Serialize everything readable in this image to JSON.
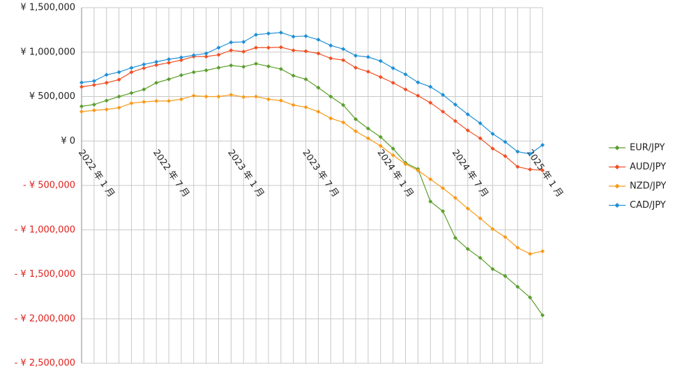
{
  "chart_data": {
    "type": "line",
    "categories": [
      "2022 年 1 月",
      null,
      null,
      null,
      null,
      null,
      "2022 年 7 月",
      null,
      null,
      null,
      null,
      null,
      "2023 年 1 月",
      null,
      null,
      null,
      null,
      null,
      "2023 年 7 月",
      null,
      null,
      null,
      null,
      null,
      "2024 年 1 月",
      null,
      null,
      null,
      null,
      null,
      "2024 年 7 月",
      null,
      null,
      null,
      null,
      null,
      "2025 年 1 月",
      null
    ],
    "series": [
      {
        "name": "EUR/JPY",
        "color": "#5b9e2d",
        "values": [
          390000,
          410000,
          455000,
          500000,
          540000,
          580000,
          655000,
          695000,
          740000,
          775000,
          795000,
          825000,
          850000,
          835000,
          870000,
          840000,
          810000,
          735000,
          695000,
          600000,
          500000,
          405000,
          245000,
          140000,
          45000,
          -85000,
          -245000,
          -315000,
          -680000,
          -790000,
          -1090000,
          -1215000,
          -1315000,
          -1440000,
          -1520000,
          -1640000,
          -1760000,
          -1960000
        ]
      },
      {
        "name": "AUD/JPY",
        "color": "#f05023",
        "values": [
          610000,
          630000,
          655000,
          690000,
          775000,
          820000,
          855000,
          880000,
          910000,
          950000,
          950000,
          970000,
          1020000,
          1005000,
          1050000,
          1050000,
          1055000,
          1020000,
          1010000,
          985000,
          930000,
          910000,
          825000,
          780000,
          720000,
          655000,
          580000,
          510000,
          430000,
          330000,
          225000,
          120000,
          30000,
          -85000,
          -170000,
          -290000,
          -320000,
          -330000
        ]
      },
      {
        "name": "NZD/JPY",
        "color": "#f79a1a",
        "values": [
          330000,
          345000,
          355000,
          375000,
          425000,
          440000,
          450000,
          450000,
          470000,
          510000,
          500000,
          500000,
          520000,
          495000,
          500000,
          470000,
          455000,
          405000,
          380000,
          330000,
          255000,
          210000,
          110000,
          30000,
          -55000,
          -160000,
          -260000,
          -330000,
          -430000,
          -530000,
          -640000,
          -760000,
          -870000,
          -990000,
          -1080000,
          -1200000,
          -1270000,
          -1240000
        ]
      },
      {
        "name": "CAD/JPY",
        "color": "#1f8fd6",
        "values": [
          658000,
          675000,
          745000,
          775000,
          823000,
          862000,
          890000,
          920000,
          940000,
          965000,
          985000,
          1050000,
          1110000,
          1115000,
          1195000,
          1210000,
          1220000,
          1175000,
          1180000,
          1140000,
          1075000,
          1035000,
          960000,
          945000,
          900000,
          820000,
          750000,
          660000,
          610000,
          520000,
          410000,
          300000,
          200000,
          80000,
          -10000,
          -120000,
          -145000,
          -45000
        ]
      }
    ],
    "ylim": [
      -2500000,
      1500000
    ],
    "yticks": [
      {
        "value": 1500000,
        "label": "¥ 1,500,000"
      },
      {
        "value": 1000000,
        "label": "¥ 1,000,000"
      },
      {
        "value": 500000,
        "label": "¥ 500,000"
      },
      {
        "value": 0,
        "label": "¥ 0"
      },
      {
        "value": -500000,
        "label": "- ¥ 500,000"
      },
      {
        "value": -1000000,
        "label": "- ¥ 1,000,000"
      },
      {
        "value": -1500000,
        "label": "- ¥ 1,500,000"
      },
      {
        "value": -2000000,
        "label": "- ¥ 2,000,000"
      },
      {
        "value": -2500000,
        "label": "- ¥ 2,500,000"
      }
    ],
    "grid": true,
    "legend": "right"
  }
}
